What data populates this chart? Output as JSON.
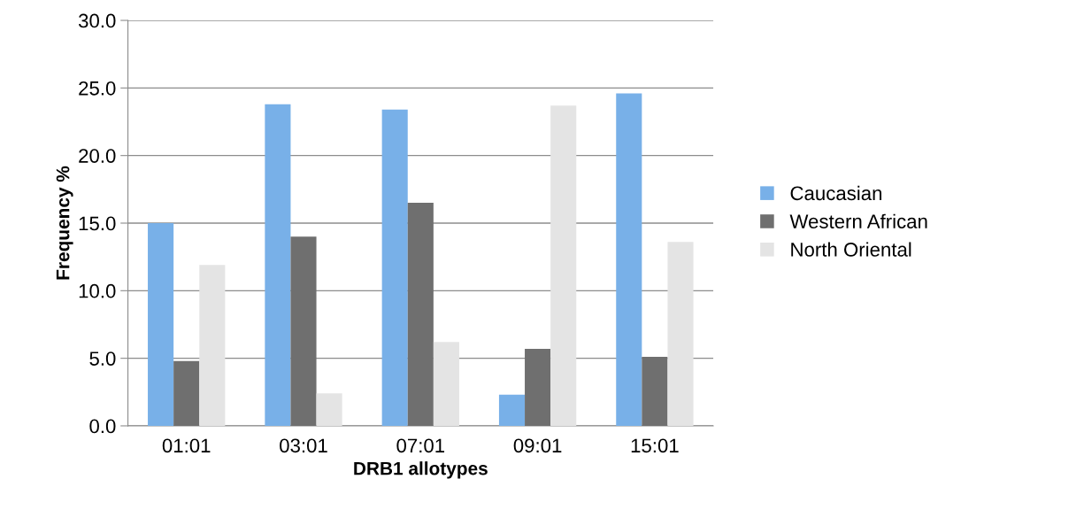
{
  "chart_data": {
    "type": "bar",
    "xlabel": "DRB1 allotypes",
    "ylabel": "Frequency %",
    "categories": [
      "01:01",
      "03:01",
      "07:01",
      "09:01",
      "15:01"
    ],
    "series": [
      {
        "name": "Caucasian",
        "color": "#78b0e8",
        "values": [
          15.0,
          23.8,
          23.4,
          2.3,
          24.6
        ]
      },
      {
        "name": "Western African",
        "color": "#6f6f6f",
        "values": [
          4.8,
          14.0,
          16.5,
          5.7,
          5.1
        ]
      },
      {
        "name": "North Oriental",
        "color": "#e4e4e4",
        "values": [
          11.9,
          2.4,
          6.2,
          23.7,
          13.6
        ]
      }
    ],
    "ylim": [
      0,
      30
    ],
    "yticks": [
      {
        "value": 0,
        "label": "0.0"
      },
      {
        "value": 5,
        "label": "5.0"
      },
      {
        "value": 10,
        "label": "10.0"
      },
      {
        "value": 15,
        "label": "15.0"
      },
      {
        "value": 20,
        "label": "20.0"
      },
      {
        "value": 25,
        "label": "25.0"
      },
      {
        "value": 30,
        "label": "30.0"
      }
    ],
    "grid": "y",
    "legend": "right"
  }
}
